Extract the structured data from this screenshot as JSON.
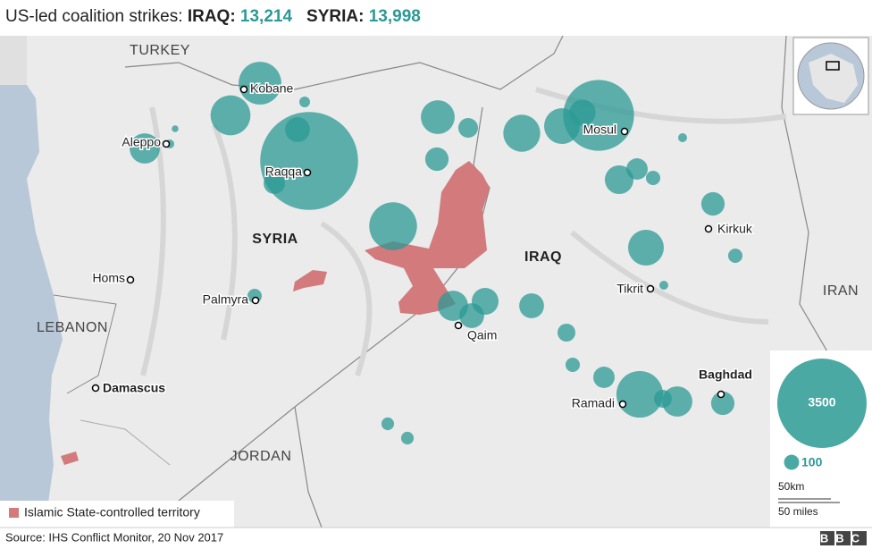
{
  "title": {
    "prefix": "US-led coalition strikes:",
    "iraq_label": "IRAQ:",
    "iraq_total": "13,214",
    "syria_label": "SYRIA:",
    "syria_total": "13,998"
  },
  "countries": [
    "TURKEY",
    "SYRIA",
    "IRAQ",
    "IRAN",
    "LEBANON",
    "JORDAN"
  ],
  "cities": [
    "Kobane",
    "Aleppo",
    "Raqqa",
    "Homs",
    "Palmyra",
    "Damascus",
    "Qaim",
    "Mosul",
    "Kirkuk",
    "Tikrit",
    "Ramadi",
    "Baghdad"
  ],
  "strikes": [
    800,
    700,
    50,
    4200,
    270,
    200,
    400,
    35,
    20,
    1000,
    500,
    170,
    240,
    600,
    560,
    2200,
    300,
    360,
    200,
    90,
    35,
    240,
    560,
    90,
    35,
    400,
    315,
    270,
    270,
    140,
    90,
    200,
    950,
    140,
    400,
    240,
    70,
    70,
    90
  ],
  "legend": {
    "territory": "Islamic State-controlled territory",
    "size_large": 3500,
    "size_small": 100
  },
  "scale": {
    "km": "50km",
    "miles": "50 miles"
  },
  "source": "Source: IHS Conflict Monitor, 20 Nov 2017",
  "logo": "BBC"
}
